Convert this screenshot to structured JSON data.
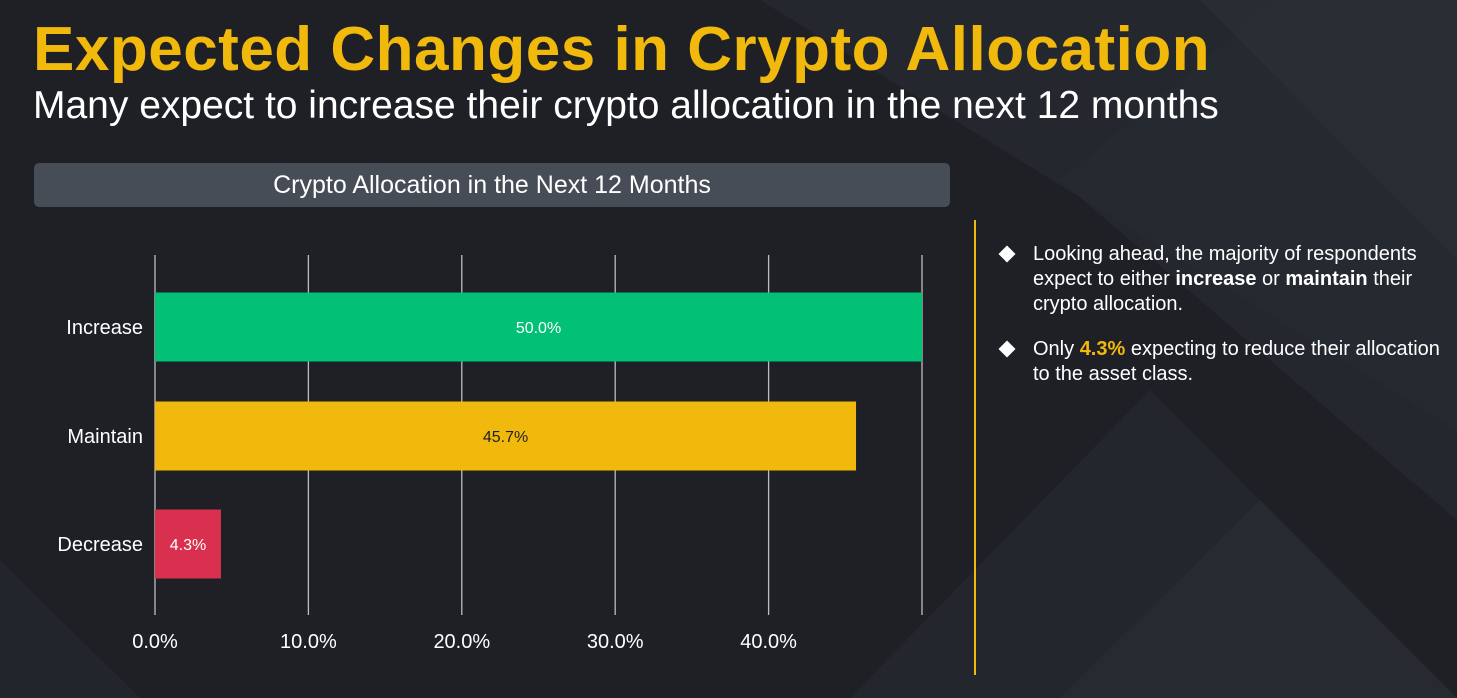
{
  "title": "Expected Changes in Crypto Allocation",
  "subtitle": "Many expect to increase their crypto allocation in the next 12 months",
  "chart_data": {
    "type": "bar",
    "orientation": "horizontal",
    "title": "Crypto Allocation in the Next 12 Months",
    "categories": [
      "Increase",
      "Maintain",
      "Decrease"
    ],
    "values": [
      50.0,
      45.7,
      4.3
    ],
    "labels": [
      "50.0%",
      "45.7%",
      "4.3%"
    ],
    "colors": [
      "#02c076",
      "#f0b90b",
      "#d9304f"
    ],
    "label_colors": [
      "#ffffff",
      "#1e2026",
      "#ffffff"
    ],
    "xlim": [
      0,
      50
    ],
    "xticks": [
      0,
      10,
      20,
      30,
      40
    ],
    "xtick_labels": [
      "0.0%",
      "10.0%",
      "20.0%",
      "30.0%",
      "40.0%"
    ],
    "grid": true
  },
  "bullets": [
    {
      "parts": [
        {
          "text": "Looking ahead, the majority of respondents expect to either ",
          "style": "normal"
        },
        {
          "text": "increase",
          "style": "hl-white"
        },
        {
          "text": " or ",
          "style": "normal"
        },
        {
          "text": "maintain",
          "style": "hl-white"
        },
        {
          "text": " their crypto allocation.",
          "style": "normal"
        }
      ]
    },
    {
      "parts": [
        {
          "text": "Only ",
          "style": "normal"
        },
        {
          "text": "4.3%",
          "style": "hl-yellow"
        },
        {
          "text": " expecting to reduce their allocation to the asset class.",
          "style": "normal"
        }
      ]
    }
  ],
  "colors": {
    "accent": "#f0b90b",
    "background": "#1e2026",
    "header_bg": "#474d57"
  }
}
